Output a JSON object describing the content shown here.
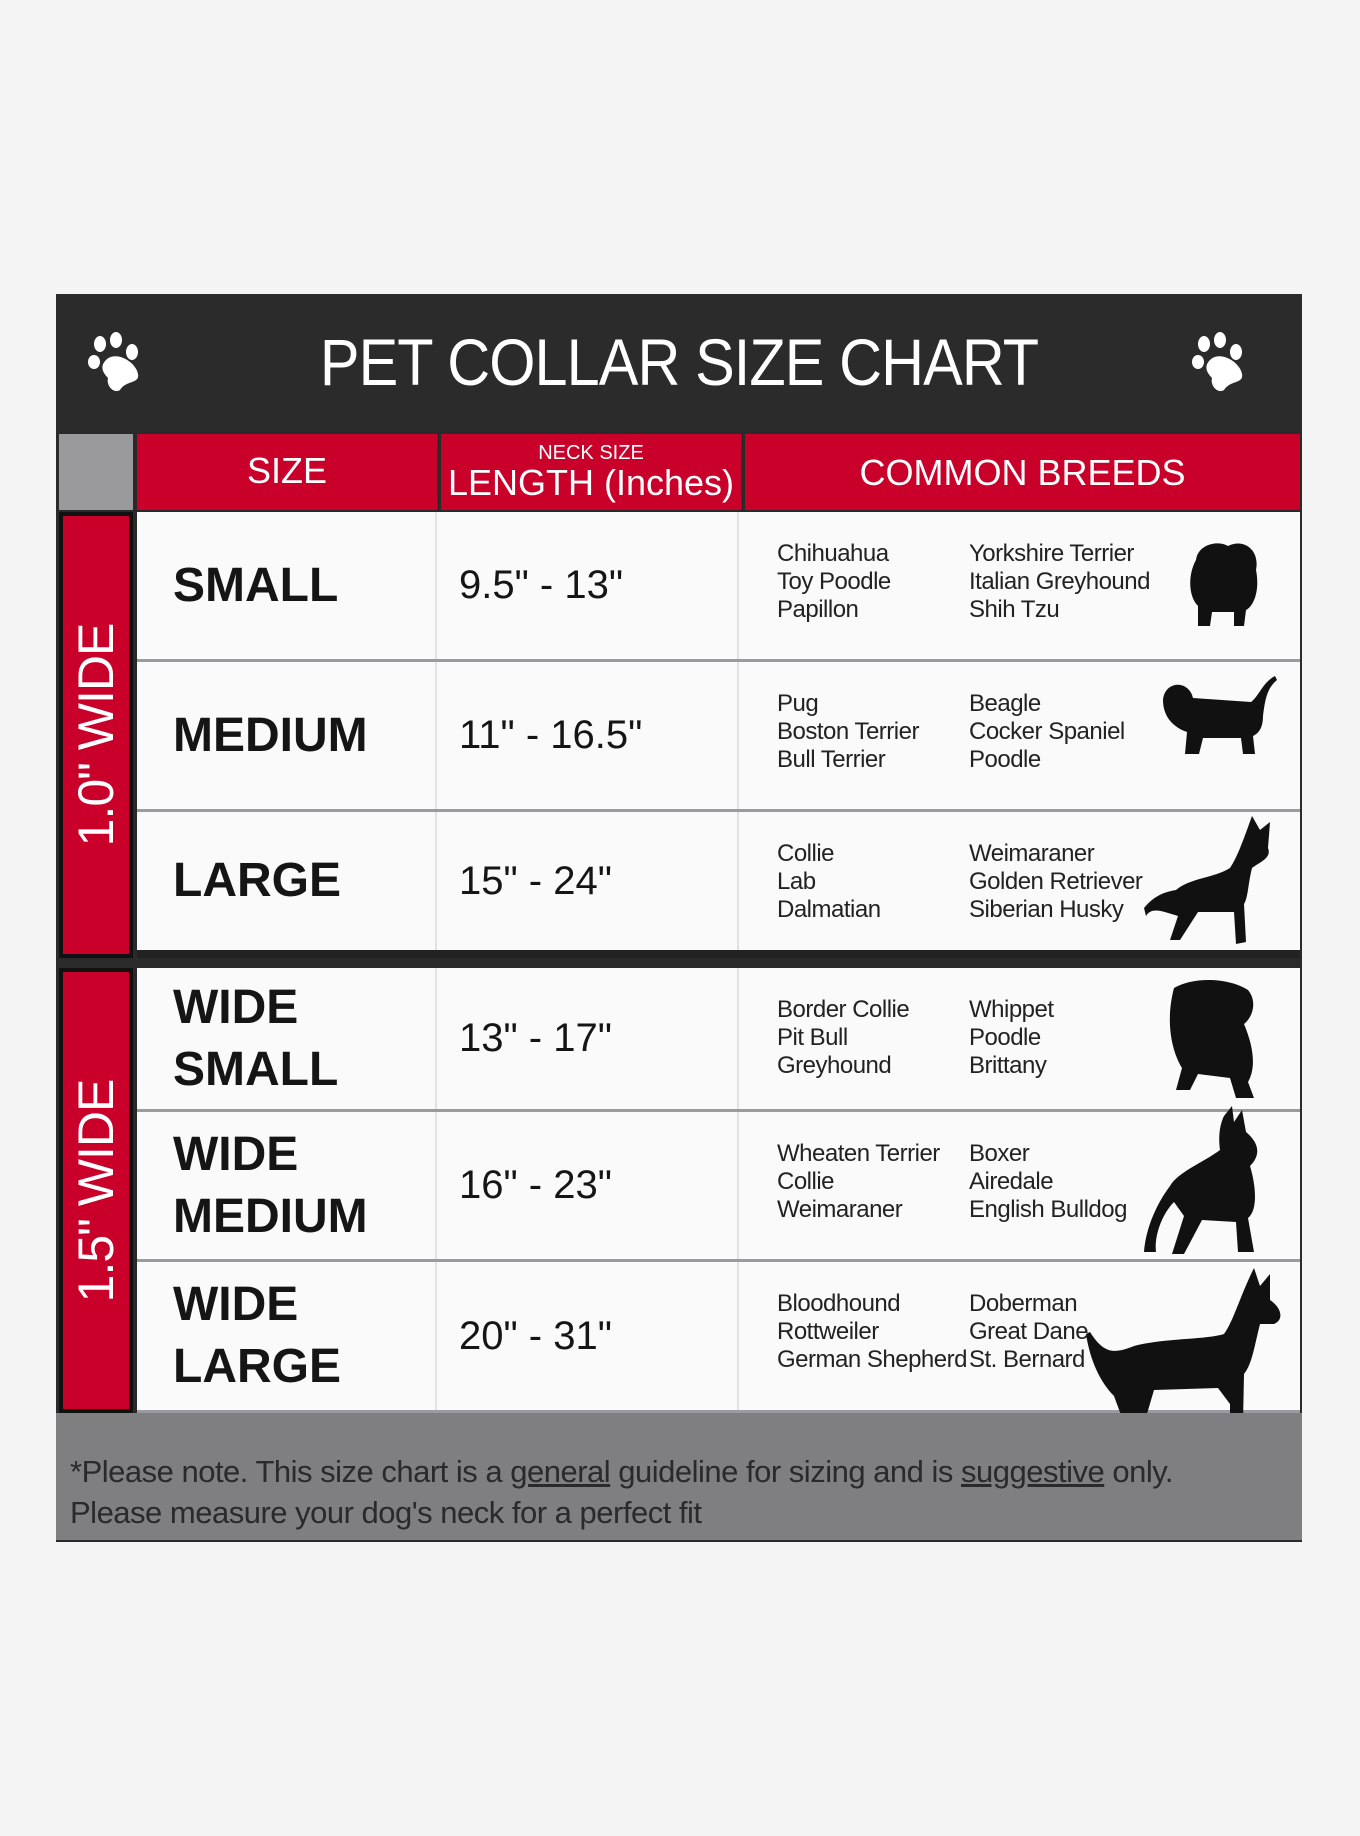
{
  "title": "PET COLLAR SIZE CHART",
  "icons": {
    "left": "paw-print-icon",
    "right": "paw-print-icon"
  },
  "colors": {
    "header": "#2b2b2b",
    "accent": "#c8002a",
    "footer": "#7f7f82"
  },
  "columns": {
    "size": "SIZE",
    "length_small": "NECK SIZE",
    "length": "LENGTH (Inches)",
    "breeds": "COMMON BREEDS"
  },
  "groups": [
    {
      "label": "1.0\" WIDE"
    },
    {
      "label": "1.5\" WIDE"
    }
  ],
  "rows": [
    {
      "size": [
        "SMALL"
      ],
      "length": "9.5\" - 13\"",
      "breeds_a": [
        "Chihuahua",
        "Toy Poodle",
        "Papillon"
      ],
      "breeds_b": [
        "Yorkshire Terrier",
        "Italian Greyhound",
        "Shih Tzu"
      ],
      "icon": "small-dog-icon"
    },
    {
      "size": [
        "MEDIUM"
      ],
      "length": "11\" - 16.5\"",
      "breeds_a": [
        "Pug",
        "Boston Terrier",
        "Bull Terrier"
      ],
      "breeds_b": [
        "Beagle",
        "Cocker Spaniel",
        "Poodle"
      ],
      "icon": "dachshund-icon"
    },
    {
      "size": [
        "LARGE"
      ],
      "length": "15\" - 24\"",
      "breeds_a": [
        "Collie",
        "Lab",
        "Dalmatian"
      ],
      "breeds_b": [
        "Weimaraner",
        "Golden Retriever",
        "Siberian Husky"
      ],
      "icon": "shepherd-dog-icon"
    },
    {
      "size": [
        "WIDE",
        "SMALL"
      ],
      "length": "13\" - 17\"",
      "breeds_a": [
        "Border Collie",
        "Pit Bull",
        "Greyhound"
      ],
      "breeds_b": [
        "Whippet",
        "Poodle",
        "Brittany"
      ],
      "icon": "bulldog-icon"
    },
    {
      "size": [
        "WIDE",
        "MEDIUM"
      ],
      "length": "16\" - 23\"",
      "breeds_a": [
        "Wheaten Terrier",
        "Collie",
        "Weimaraner"
      ],
      "breeds_b": [
        "Boxer",
        "Airedale",
        "English Bulldog"
      ],
      "icon": "pitbull-icon"
    },
    {
      "size": [
        "WIDE",
        "LARGE"
      ],
      "length": "20\" - 31\"",
      "breeds_a": [
        "Bloodhound",
        "Rottweiler",
        "German Shepherd"
      ],
      "breeds_b": [
        "Doberman",
        "Great Dane",
        "St. Bernard"
      ],
      "icon": "doberman-icon"
    }
  ],
  "footer": {
    "p1": "*Please note. This size chart is a ",
    "u1": "general",
    "p2": " guideline for sizing and is ",
    "u2": "suggestive",
    "p3": " only.",
    "line2": "Please measure your dog's neck for a perfect fit"
  }
}
